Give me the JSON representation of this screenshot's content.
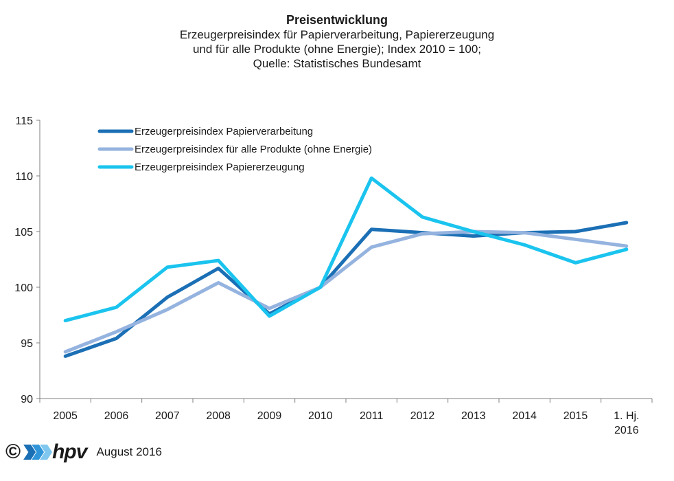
{
  "chart_data": {
    "type": "line",
    "title": "Preisentwicklung",
    "subtitle": [
      "Erzeugerpreisindex  für Papierverarbeitung,  Papiererzeugung",
      "und für alle Produkte (ohne Energie); Index 2010 = 100;",
      "Quelle:  Statistisches  Bundesamt"
    ],
    "categories": [
      [
        "2005"
      ],
      [
        "2006"
      ],
      [
        "2007"
      ],
      [
        "2008"
      ],
      [
        "2009"
      ],
      [
        "2010"
      ],
      [
        "2011"
      ],
      [
        "2012"
      ],
      [
        "2013"
      ],
      [
        "2014"
      ],
      [
        "2015"
      ],
      [
        "1. Hj.",
        "2016"
      ]
    ],
    "ylim": [
      90,
      115
    ],
    "yticks": [
      90,
      95,
      100,
      105,
      110,
      115
    ],
    "legend_position": "top-left",
    "series": [
      {
        "name": "Erzeugerpreisindex Papierverarbeitung",
        "color": "#1b6fb5",
        "values": [
          93.8,
          95.4,
          99.1,
          101.7,
          97.6,
          100.0,
          105.2,
          104.9,
          104.6,
          104.9,
          105.0,
          105.8
        ]
      },
      {
        "name": "Erzeugerpreisindex für alle Produkte (ohne Energie)",
        "color": "#95b3df",
        "values": [
          94.2,
          96.0,
          98.0,
          100.4,
          98.1,
          100.0,
          103.6,
          104.8,
          105.0,
          104.9,
          104.3,
          103.7
        ]
      },
      {
        "name": "Erzeugerpreisindex Papiererzeugung",
        "color": "#1ac4ee",
        "values": [
          97.0,
          98.2,
          101.8,
          102.4,
          97.4,
          100.0,
          109.8,
          106.3,
          105.0,
          103.8,
          102.2,
          103.4
        ]
      }
    ]
  },
  "footer": {
    "copyright": "©",
    "brand": "hpv",
    "date": "August 2016",
    "chevron_colors": [
      "#1b6fb5",
      "#2f95d8",
      "#7fc7ee"
    ]
  }
}
